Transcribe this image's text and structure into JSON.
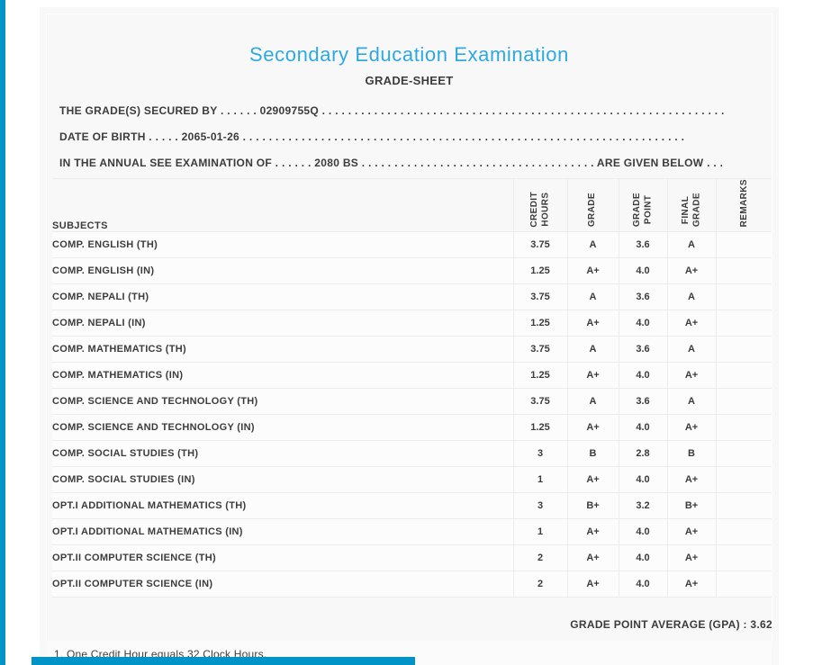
{
  "theme": {
    "accent_blue": "#0093C8",
    "title_blue": "#2EA9E0",
    "panel_bg": "#F8F8F8",
    "text_dark": "#3C3C3C"
  },
  "header": {
    "title": "Secondary Education Examination",
    "subtitle": "GRADE-SHEET"
  },
  "info": {
    "line1": "THE GRADE(S) SECURED BY . . . . . . 02909755Q . . . . . . . . . . . . . . . . . . . . . . . . . . . . . . . . . . . . . . . . . . . . . . . . . . . . . . . . . . . . . .",
    "line2": "DATE OF BIRTH . . . . . 2065-01-26 . . . . . . . . . . . . . . . . . . . . . . . . . . . . . . . . . . . . . . . . . . . . . . . . . . . . . . . . . . . . . . . . . . . .",
    "line3": "IN THE ANNUAL SEE EXAMINATION OF . . . . . . 2080 BS . . . . . . . . . . . . . . . . . . . . . . . . . . . . . . . . . . . . ARE GIVEN BELOW . . ."
  },
  "table": {
    "subjects_header": "SUBJECTS",
    "columns": [
      "CREDIT\nHOURS",
      "GRADE",
      "GRADE\nPOINT",
      "FINAL\nGRADE",
      "REMARKS"
    ],
    "rows": [
      [
        "COMP. ENGLISH (TH)",
        "3.75",
        "A",
        "3.6",
        "A",
        ""
      ],
      [
        "COMP. ENGLISH (IN)",
        "1.25",
        "A+",
        "4.0",
        "A+",
        ""
      ],
      [
        "COMP. NEPALI (TH)",
        "3.75",
        "A",
        "3.6",
        "A",
        ""
      ],
      [
        "COMP. NEPALI (IN)",
        "1.25",
        "A+",
        "4.0",
        "A+",
        ""
      ],
      [
        "COMP. MATHEMATICS (TH)",
        "3.75",
        "A",
        "3.6",
        "A",
        ""
      ],
      [
        "COMP. MATHEMATICS (IN)",
        "1.25",
        "A+",
        "4.0",
        "A+",
        ""
      ],
      [
        "COMP. SCIENCE AND TECHNOLOGY (TH)",
        "3.75",
        "A",
        "3.6",
        "A",
        ""
      ],
      [
        "COMP. SCIENCE AND TECHNOLOGY (IN)",
        "1.25",
        "A+",
        "4.0",
        "A+",
        ""
      ],
      [
        "COMP. SOCIAL STUDIES (TH)",
        "3",
        "B",
        "2.8",
        "B",
        ""
      ],
      [
        "COMP. SOCIAL STUDIES (IN)",
        "1",
        "A+",
        "4.0",
        "A+",
        ""
      ],
      [
        "OPT.I ADDITIONAL MATHEMATICS (TH)",
        "3",
        "B+",
        "3.2",
        "B+",
        ""
      ],
      [
        "OPT.I ADDITIONAL MATHEMATICS (IN)",
        "1",
        "A+",
        "4.0",
        "A+",
        ""
      ],
      [
        "OPT.II COMPUTER SCIENCE (TH)",
        "2",
        "A+",
        "4.0",
        "A+",
        ""
      ],
      [
        "OPT.II COMPUTER SCIENCE (IN)",
        "2",
        "A+",
        "4.0",
        "A+",
        ""
      ]
    ]
  },
  "summary": {
    "gpa_line": "GRADE POINT AVERAGE (GPA) : 3.62"
  },
  "footnote": "1. One Credit Hour equals 32 Clock Hours."
}
